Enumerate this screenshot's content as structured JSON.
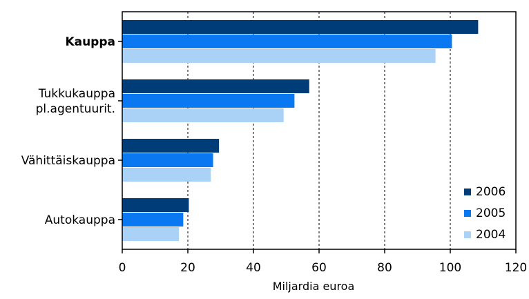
{
  "chart_data": {
    "type": "bar",
    "orientation": "horizontal",
    "categories": [
      {
        "lines": [
          "Kauppa"
        ],
        "bold": true
      },
      {
        "lines": [
          "Tukkukauppa",
          "pl.agentuurit."
        ],
        "bold": false
      },
      {
        "lines": [
          "Vähittäiskauppa"
        ],
        "bold": false
      },
      {
        "lines": [
          "Autokauppa"
        ],
        "bold": false
      }
    ],
    "series": [
      {
        "name": "2006",
        "color": "#003c78",
        "values": [
          108.5,
          57,
          29.5,
          20.3
        ]
      },
      {
        "name": "2005",
        "color": "#0a78f0",
        "values": [
          100.5,
          52.5,
          27.7,
          18.6
        ]
      },
      {
        "name": "2004",
        "color": "#aad2f6",
        "values": [
          95.5,
          49.2,
          27,
          17.3
        ]
      }
    ],
    "xlim": [
      0,
      120
    ],
    "xticks": [
      0,
      20,
      40,
      60,
      80,
      100,
      120
    ],
    "xlabel": "Miljardia euroa",
    "grid": "vertical dashed",
    "legend_position": "bottom-right"
  }
}
